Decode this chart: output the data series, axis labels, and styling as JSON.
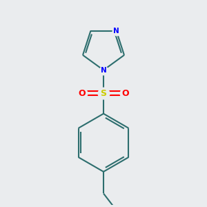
{
  "background_color": "#eaecee",
  "bond_color": "#2d6e6e",
  "nitrogen_color": "#0000ff",
  "sulfur_color": "#cccc00",
  "oxygen_color": "#ff0000",
  "line_width": 1.5,
  "fig_width": 3.0,
  "fig_height": 3.0,
  "dpi": 100,
  "xlim": [
    -2.5,
    2.5
  ],
  "ylim": [
    -3.5,
    3.5
  ],
  "sulfur_label": "S",
  "oxygen_label": "O",
  "nitrogen_label": "N"
}
